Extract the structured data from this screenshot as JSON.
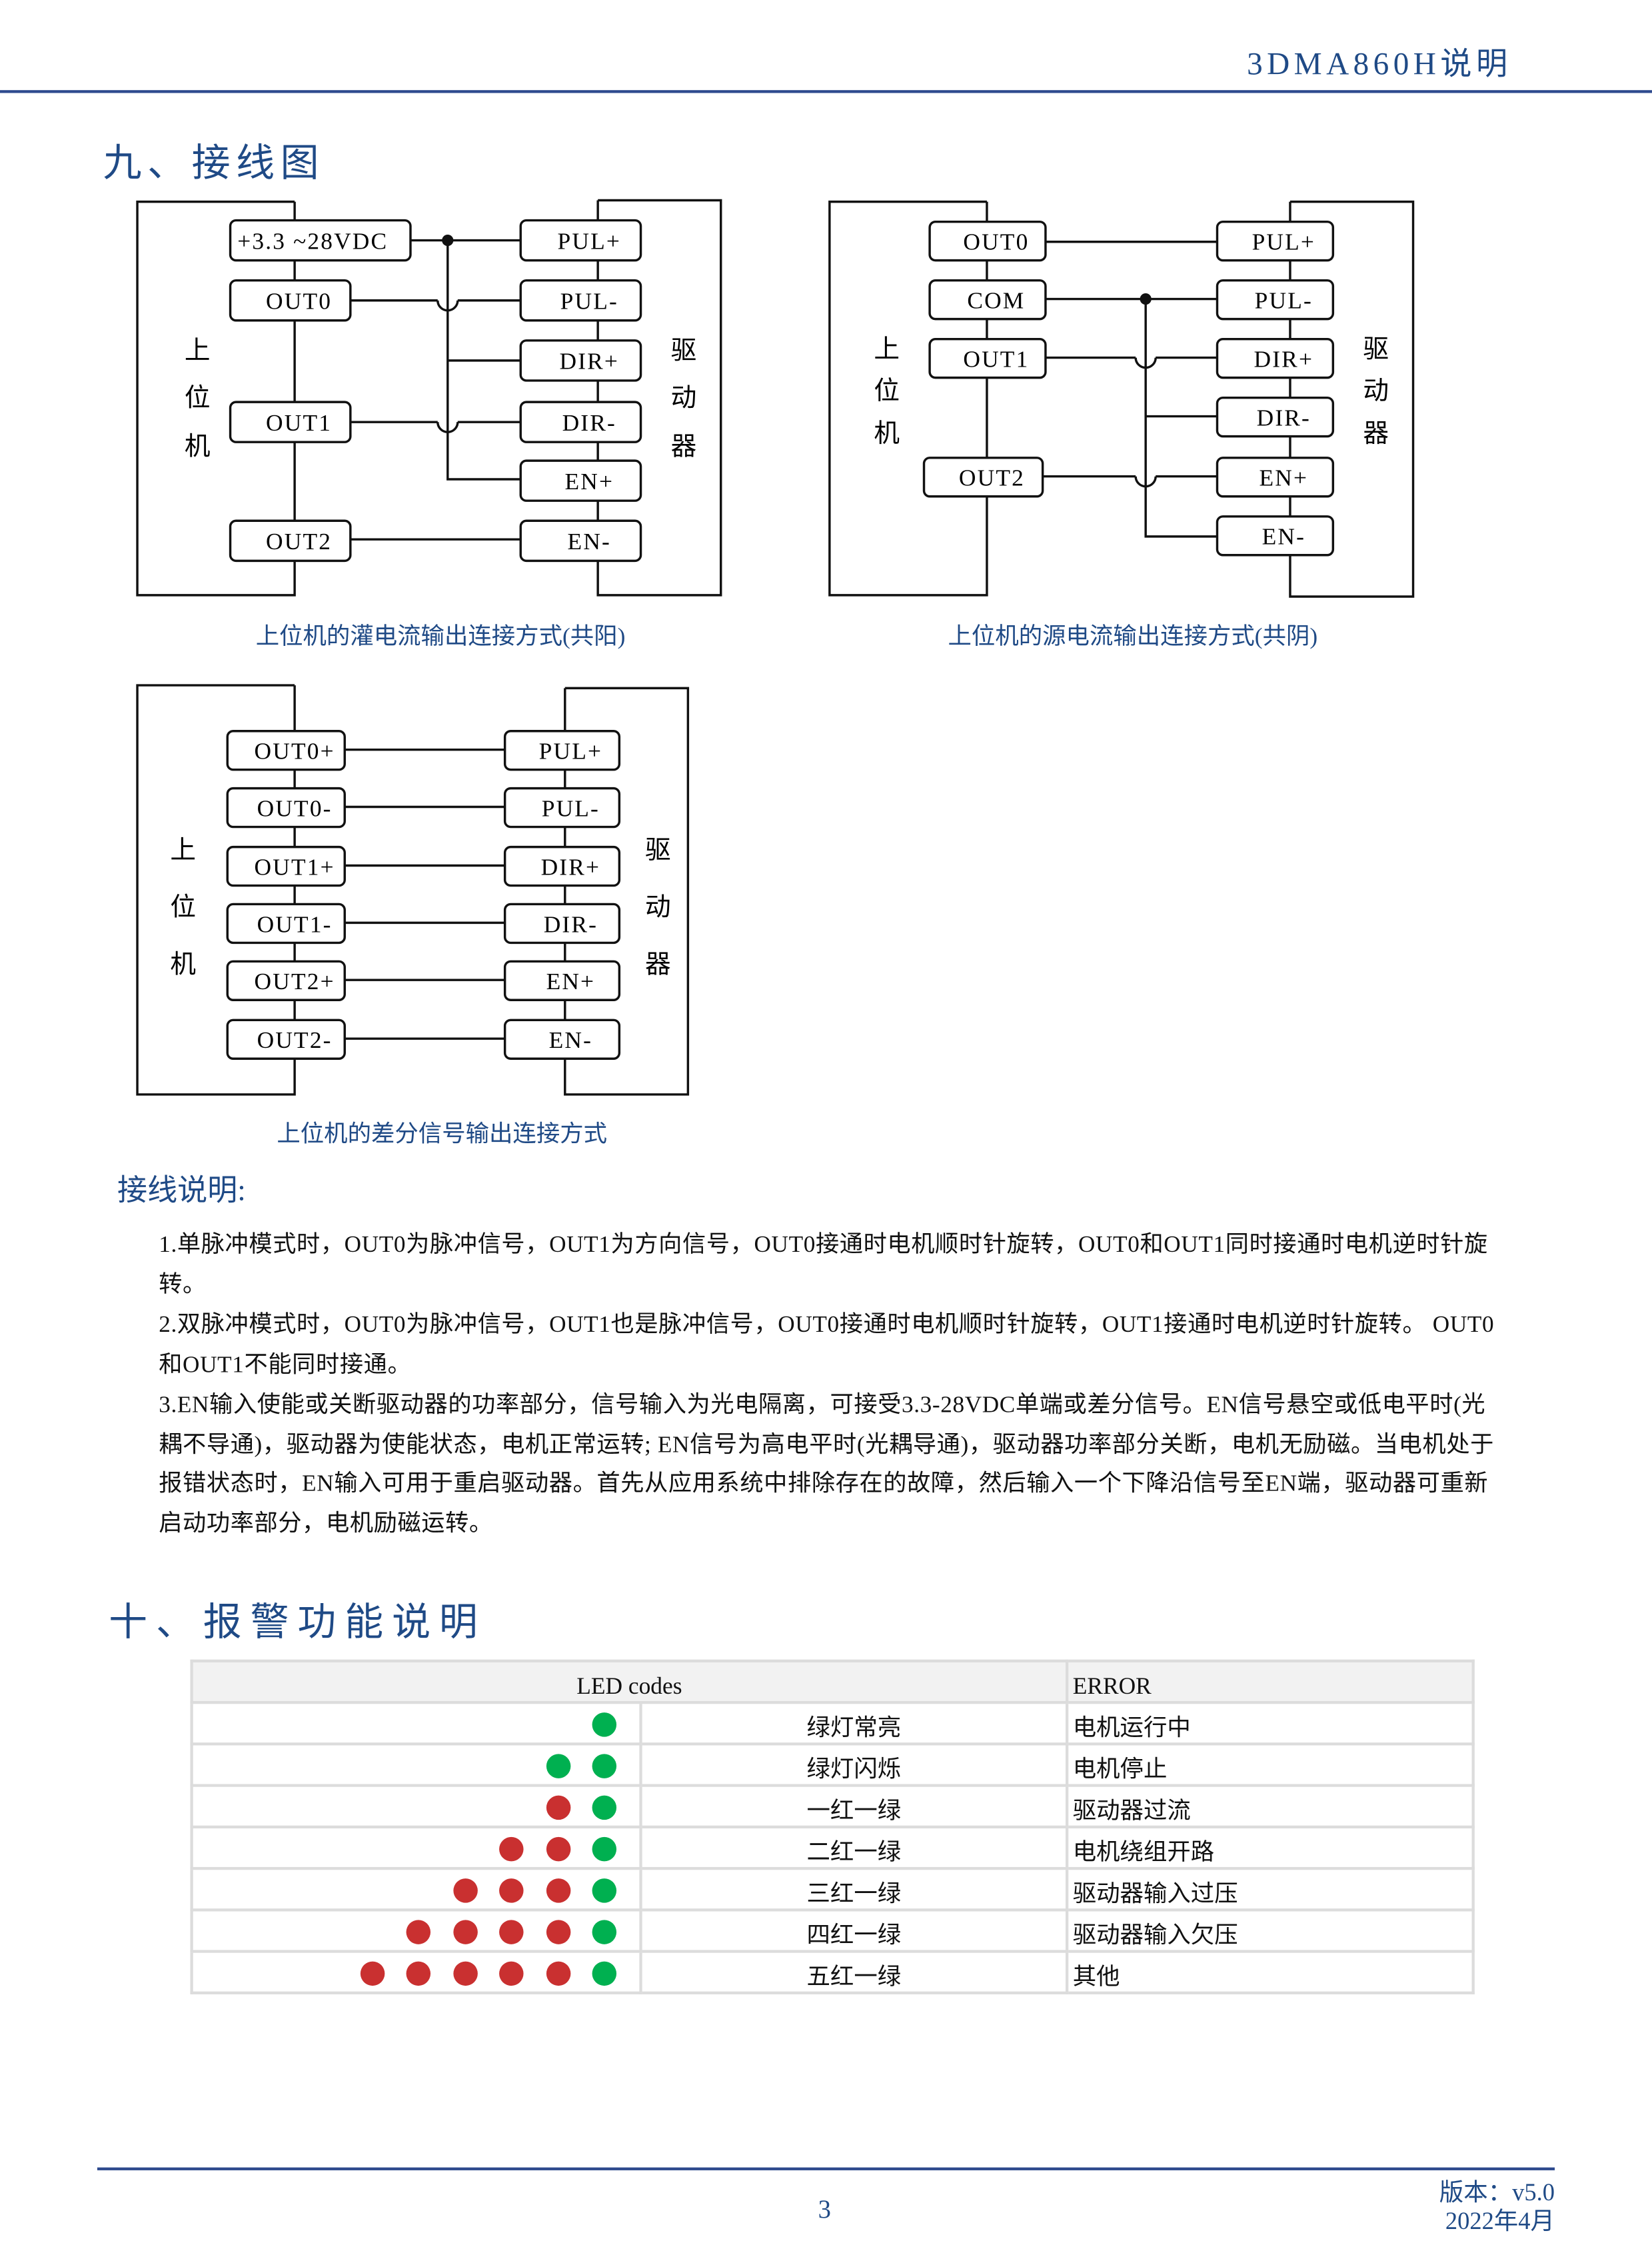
{
  "header": {
    "title": "3DMA860H说明"
  },
  "section9": {
    "title": "九、接线图"
  },
  "host_label": [
    "上",
    "位",
    "机"
  ],
  "driver_label": [
    "驱",
    "动",
    "器"
  ],
  "diagram1": {
    "caption": "上位机的灌电流输出连接方式(共阳)",
    "host_terminals": [
      "+3.3 ~28VDC",
      "OUT0",
      "OUT1",
      "OUT2"
    ],
    "driver_terminals": [
      "PUL+",
      "PUL-",
      "DIR+",
      "DIR-",
      "EN+",
      "EN-"
    ]
  },
  "diagram2": {
    "caption": "上位机的源电流输出连接方式(共阴)",
    "host_terminals": [
      "OUT0",
      "COM",
      "OUT1",
      "OUT2"
    ],
    "driver_terminals": [
      "PUL+",
      "PUL-",
      "DIR+",
      "DIR-",
      "EN+",
      "EN-"
    ]
  },
  "diagram3": {
    "caption": "上位机的差分信号输出连接方式",
    "host_terminals": [
      "OUT0+",
      "OUT0-",
      "OUT1+",
      "OUT1-",
      "OUT2+",
      "OUT2-"
    ],
    "driver_terminals": [
      "PUL+",
      "PUL-",
      "DIR+",
      "DIR-",
      "EN+",
      "EN-"
    ]
  },
  "notes": {
    "title": "接线说明:",
    "items": [
      "1.单脉冲模式时，OUT0为脉冲信号，OUT1为方向信号，OUT0接通时电机顺时针旋转，OUT0和OUT1同时接通时电机逆时针旋转。",
      "2.双脉冲模式时，OUT0为脉冲信号，OUT1也是脉冲信号，OUT0接通时电机顺时针旋转，OUT1接通时电机逆时针旋转。 OUT0和OUT1不能同时接通。",
      "3.EN输入使能或关断驱动器的功率部分，信号输入为光电隔离，可接受3.3-28VDC单端或差分信号。EN信号悬空或低电平时(光耦不导通)，驱动器为使能状态，电机正常运转; EN信号为高电平时(光耦导通)，驱动器功率部分关断，电机无励磁。当电机处于报错状态时，EN输入可用于重启驱动器。首先从应用系统中排除存在的故障，然后输入一个下降沿信号至EN端，驱动器可重新启动功率部分，电机励磁运转。"
    ]
  },
  "section10": {
    "title": "十、报警功能说明"
  },
  "alarm_table": {
    "headers": {
      "led": "LED codes",
      "error": "ERROR"
    },
    "colors": {
      "red": "#c93030",
      "green": "#00b050"
    },
    "rows": [
      {
        "red": 0,
        "green": 1,
        "pattern": "绿灯常亮",
        "error": "电机运行中"
      },
      {
        "red": 0,
        "green": 2,
        "pattern": "绿灯闪烁",
        "error": "电机停止"
      },
      {
        "red": 1,
        "green": 1,
        "pattern": "一红一绿",
        "error": "驱动器过流"
      },
      {
        "red": 2,
        "green": 1,
        "pattern": "二红一绿",
        "error": "电机绕组开路"
      },
      {
        "red": 3,
        "green": 1,
        "pattern": "三红一绿",
        "error": "驱动器输入过压"
      },
      {
        "red": 4,
        "green": 1,
        "pattern": "四红一绿",
        "error": "驱动器输入欠压"
      },
      {
        "red": 5,
        "green": 1,
        "pattern": "五红一绿",
        "error": "其他"
      }
    ]
  },
  "footer": {
    "page": "3",
    "version": "版本：v5.0",
    "date": "2022年4月"
  }
}
